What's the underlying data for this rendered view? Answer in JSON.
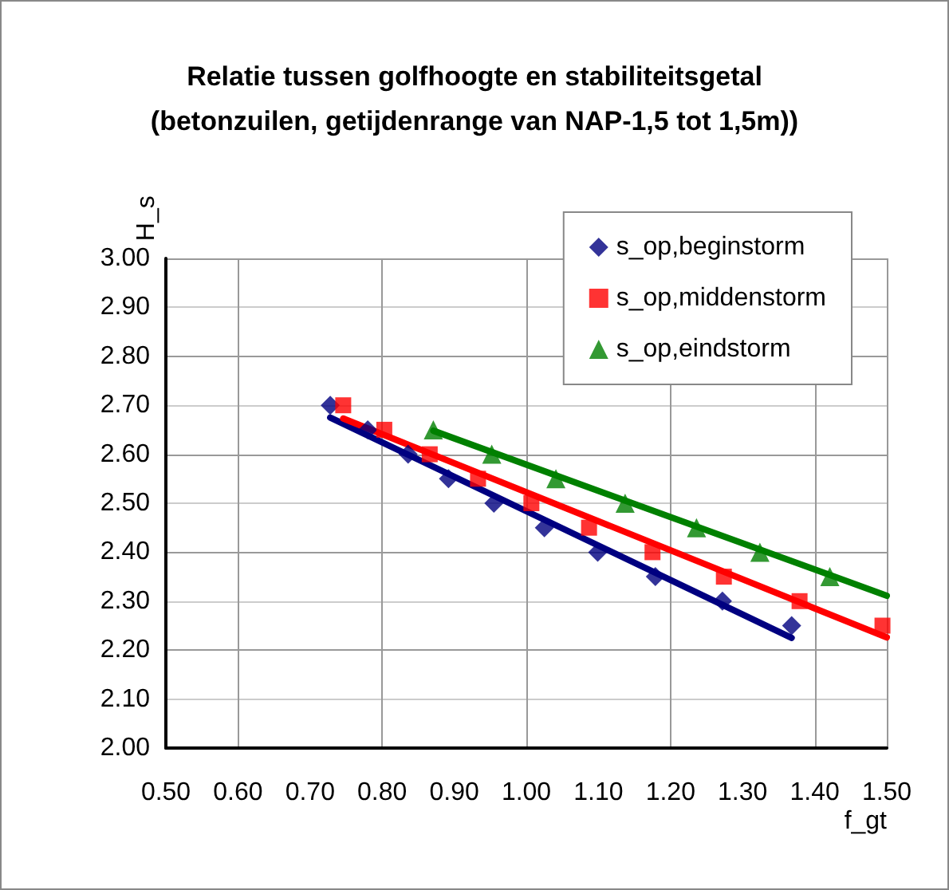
{
  "chart_data": {
    "type": "scatter",
    "title": "Relatie tussen golfhoogte en stabiliteitsgetal\n(betonzuilen, getijdenrange van NAP-1,5 tot 1,5m))",
    "xlabel": "f_gt",
    "ylabel": "H_s",
    "xlim": [
      0.5,
      1.5
    ],
    "xticks": [
      {
        "value": 0.5,
        "label": "0.50"
      },
      {
        "value": 0.6,
        "label": "0.60"
      },
      {
        "value": 0.7,
        "label": "0.70"
      },
      {
        "value": 0.8,
        "label": "0.80"
      },
      {
        "value": 0.9,
        "label": "0.90"
      },
      {
        "value": 1.0,
        "label": "1.00"
      },
      {
        "value": 1.1,
        "label": "1.10"
      },
      {
        "value": 1.2,
        "label": "1.20"
      },
      {
        "value": 1.3,
        "label": "1.30"
      },
      {
        "value": 1.4,
        "label": "1.40"
      },
      {
        "value": 1.5,
        "label": "1.50"
      }
    ],
    "ylim": [
      2.0,
      3.0
    ],
    "yticks": [
      {
        "value": 2.0,
        "label": "2.00"
      },
      {
        "value": 2.1,
        "label": "2.10"
      },
      {
        "value": 2.2,
        "label": "2.20"
      },
      {
        "value": 2.3,
        "label": "2.30"
      },
      {
        "value": 2.4,
        "label": "2.40"
      },
      {
        "value": 2.5,
        "label": "2.50"
      },
      {
        "value": 2.6,
        "label": "2.60"
      },
      {
        "value": 2.7,
        "label": "2.70"
      },
      {
        "value": 2.8,
        "label": "2.80"
      },
      {
        "value": 2.9,
        "label": "2.90"
      },
      {
        "value": 3.0,
        "label": "3.00"
      }
    ],
    "grid": true,
    "legend": "top right",
    "series": [
      {
        "name": "s_op,beginstorm",
        "color": "#000080",
        "marker": "diamond",
        "x": [
          0.728,
          0.78,
          0.836,
          0.892,
          0.955,
          1.025,
          1.099,
          1.179,
          1.272,
          1.368
        ],
        "values": [
          2.7,
          2.65,
          2.6,
          2.55,
          2.5,
          2.45,
          2.4,
          2.35,
          2.3,
          2.25
        ]
      },
      {
        "name": "s_op,middenstorm",
        "color": "#ff0000",
        "marker": "square",
        "x": [
          0.746,
          0.803,
          0.866,
          0.933,
          1.007,
          1.087,
          1.175,
          1.274,
          1.379,
          1.494
        ],
        "values": [
          2.7,
          2.65,
          2.6,
          2.55,
          2.5,
          2.45,
          2.4,
          2.35,
          2.3,
          2.25
        ]
      },
      {
        "name": "s_op,eindstorm",
        "color": "#008000",
        "marker": "triangle",
        "x": [
          0.871,
          0.952,
          1.041,
          1.137,
          1.236,
          1.324,
          1.421
        ],
        "values": [
          2.65,
          2.6,
          2.55,
          2.5,
          2.45,
          2.4,
          2.35
        ]
      },
      {
        "type": "line",
        "color": "#000080",
        "marker": "none",
        "x": [
          0.728,
          1.368
        ],
        "values": [
          2.675,
          2.225
        ]
      },
      {
        "type": "line",
        "color": "#ff0000",
        "marker": "none",
        "x": [
          0.746,
          1.5
        ],
        "values": [
          2.673,
          2.226
        ]
      },
      {
        "type": "line",
        "color": "#008000",
        "marker": "none",
        "x": [
          0.871,
          1.5
        ],
        "values": [
          2.648,
          2.311
        ]
      }
    ]
  }
}
